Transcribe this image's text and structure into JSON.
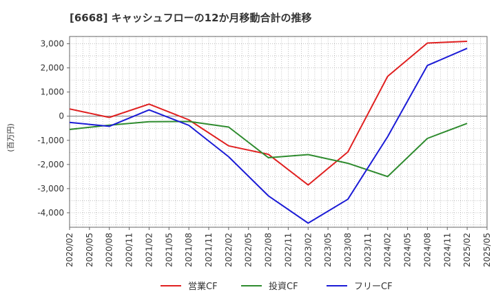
{
  "chart_data": {
    "type": "line",
    "title": "[6668]  キャッシュフローの12か月移動合計の推移",
    "ylabel": "(百万円)",
    "xlabel": "",
    "ylim": [
      -4600,
      3300
    ],
    "yticks": [
      3000,
      2000,
      1000,
      0,
      -1000,
      -2000,
      -3000,
      -4000
    ],
    "ytick_labels": [
      "3,000",
      "2,000",
      "1,000",
      "0",
      "-1,000",
      "-2,000",
      "-3,000",
      "-4,000"
    ],
    "x_categories": [
      "2020/02",
      "2020/05",
      "2020/08",
      "2020/11",
      "2021/02",
      "2021/05",
      "2021/08",
      "2021/11",
      "2022/02",
      "2022/05",
      "2022/08",
      "2022/11",
      "2023/02",
      "2023/05",
      "2023/08",
      "2023/11",
      "2024/02",
      "2024/05",
      "2024/08",
      "2024/11",
      "2025/02",
      "2025/05"
    ],
    "grid": true,
    "legend_position": "bottom",
    "series": [
      {
        "name": "営業CF",
        "color": "#e01f1f",
        "points": [
          [
            "2020/02",
            300
          ],
          [
            "2020/08",
            -50
          ],
          [
            "2021/02",
            500
          ],
          [
            "2021/08",
            -150
          ],
          [
            "2022/02",
            -1230
          ],
          [
            "2022/08",
            -1580
          ],
          [
            "2023/02",
            -2850
          ],
          [
            "2023/08",
            -1480
          ],
          [
            "2024/02",
            1650
          ],
          [
            "2024/08",
            3030
          ],
          [
            "2025/02",
            3100
          ]
        ]
      },
      {
        "name": "投資CF",
        "color": "#2e8b2e",
        "points": [
          [
            "2020/02",
            -550
          ],
          [
            "2020/08",
            -370
          ],
          [
            "2021/02",
            -230
          ],
          [
            "2021/08",
            -220
          ],
          [
            "2022/02",
            -450
          ],
          [
            "2022/08",
            -1720
          ],
          [
            "2023/02",
            -1590
          ],
          [
            "2023/08",
            -1950
          ],
          [
            "2024/02",
            -2500
          ],
          [
            "2024/08",
            -920
          ],
          [
            "2025/02",
            -300
          ]
        ]
      },
      {
        "name": "フリーCF",
        "color": "#1a1ad6",
        "points": [
          [
            "2020/02",
            -260
          ],
          [
            "2020/08",
            -420
          ],
          [
            "2021/02",
            260
          ],
          [
            "2021/08",
            -380
          ],
          [
            "2022/02",
            -1680
          ],
          [
            "2022/08",
            -3300
          ],
          [
            "2023/02",
            -4430
          ],
          [
            "2023/08",
            -3440
          ],
          [
            "2024/02",
            -850
          ],
          [
            "2024/08",
            2100
          ],
          [
            "2025/02",
            2810
          ]
        ]
      }
    ]
  }
}
